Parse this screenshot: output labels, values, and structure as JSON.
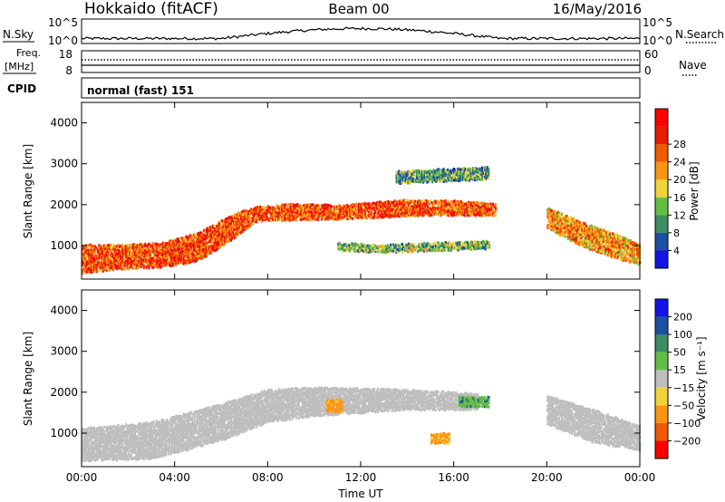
{
  "header": {
    "title": "Hokkaido (fitACF)",
    "beam": "Beam 00",
    "date": "16/May/2016"
  },
  "nsky_panel": {
    "left_label": "N.Sky",
    "right_label": "N.Search",
    "left_ticks": [
      "10^5",
      "10^0"
    ],
    "right_ticks": [
      "10^5",
      "10^0"
    ]
  },
  "freq_panel": {
    "left_label_1": "Freq.",
    "left_label_2": "[MHz]",
    "right_label": "Nave",
    "left_ticks": [
      "18",
      "8"
    ],
    "right_ticks": [
      "60",
      "0"
    ]
  },
  "cpid": {
    "label": "CPID",
    "value": "normal (fast) 151"
  },
  "colors": {
    "power": [
      "#1414e6",
      "#1e50a0",
      "#3c8c64",
      "#64be46",
      "#f0d23c",
      "#fa9614",
      "#f05a00",
      "#e61e00",
      "#ff0000"
    ],
    "velocity": [
      "#1414e6",
      "#1e50a0",
      "#3c8c64",
      "#64be46",
      "#bebebe",
      "#f0d23c",
      "#fa9614",
      "#f05a00",
      "#ff0000"
    ]
  },
  "chart_data": [
    {
      "type": "heatmap",
      "title": "",
      "xlabel": "",
      "ylabel": "Slant Range [km]",
      "xlim": [
        0,
        24
      ],
      "ylim": [
        180,
        4500
      ],
      "x_tick_values": [
        0,
        4,
        8,
        12,
        16,
        20,
        24
      ],
      "y_ticks": [
        1000,
        2000,
        3000,
        4000
      ],
      "colorbar": {
        "label": "Power [dB]",
        "range": [
          0,
          32
        ],
        "ticks": [
          "4",
          "8",
          "12",
          "16",
          "20",
          "24",
          "28"
        ]
      },
      "bands": [
        {
          "x": [
            0.0,
            1.5,
            3.5,
            5.0,
            6.5,
            7.5,
            9.0,
            11.0,
            14.0,
            16.0,
            17.8
          ],
          "center_km": [
            700,
            750,
            800,
            1000,
            1500,
            1800,
            1850,
            1850,
            1950,
            1950,
            1900
          ],
          "width_km": [
            700,
            600,
            600,
            700,
            600,
            350,
            400,
            350,
            400,
            350,
            300
          ],
          "level_db": 24
        },
        {
          "x": [
            20.0,
            21.5,
            23.0,
            24.0
          ],
          "center_km": [
            1700,
            1300,
            1000,
            800
          ],
          "width_km": [
            500,
            600,
            600,
            500
          ],
          "level_db": 20
        },
        {
          "x": [
            11.0,
            13.0,
            15.0,
            17.5
          ],
          "center_km": [
            1000,
            950,
            1000,
            1050
          ],
          "width_km": [
            200,
            200,
            200,
            200
          ],
          "level_db": 12
        },
        {
          "x": [
            13.5,
            15.5,
            17.5
          ],
          "center_km": [
            2700,
            2750,
            2800
          ],
          "width_km": [
            300,
            300,
            300
          ],
          "level_db": 10
        }
      ]
    },
    {
      "type": "heatmap",
      "title": "",
      "xlabel": "Time UT",
      "ylabel": "Slant Range [km]",
      "xlim": [
        0,
        24
      ],
      "ylim": [
        180,
        4500
      ],
      "x_tick_values": [
        0,
        4,
        8,
        12,
        16,
        20,
        24
      ],
      "x_tick_labels": [
        "00:00",
        "04:00",
        "08:00",
        "12:00",
        "16:00",
        "20:00",
        "00:00"
      ],
      "y_ticks": [
        1000,
        2000,
        3000,
        4000
      ],
      "colorbar": {
        "label": "Velocity [m s⁻¹]",
        "ticks": [
          "200",
          "100",
          "50",
          "15",
          "−15",
          "−50",
          "−100",
          "−200"
        ]
      },
      "bands": [
        {
          "x": [
            0.0,
            3.0,
            6.0,
            8.0,
            10.0,
            14.0,
            17.0
          ],
          "center_km": [
            750,
            850,
            1300,
            1700,
            1800,
            1850,
            1800
          ],
          "width_km": [
            800,
            900,
            900,
            800,
            700,
            500,
            400
          ],
          "level_v": 0
        },
        {
          "x": [
            20.0,
            22.0,
            24.0
          ],
          "center_km": [
            1600,
            1200,
            900
          ],
          "width_km": [
            700,
            800,
            600
          ],
          "level_v": 0
        },
        {
          "x": [
            10.5,
            11.2
          ],
          "center_km": [
            1700,
            1700
          ],
          "width_km": [
            300,
            300
          ],
          "level_v": -60
        },
        {
          "x": [
            15.0,
            15.8
          ],
          "center_km": [
            900,
            900
          ],
          "width_km": [
            250,
            250
          ],
          "level_v": -60
        },
        {
          "x": [
            16.2,
            17.5
          ],
          "center_km": [
            1800,
            1800
          ],
          "width_km": [
            250,
            250
          ],
          "level_v": 40
        }
      ]
    }
  ]
}
